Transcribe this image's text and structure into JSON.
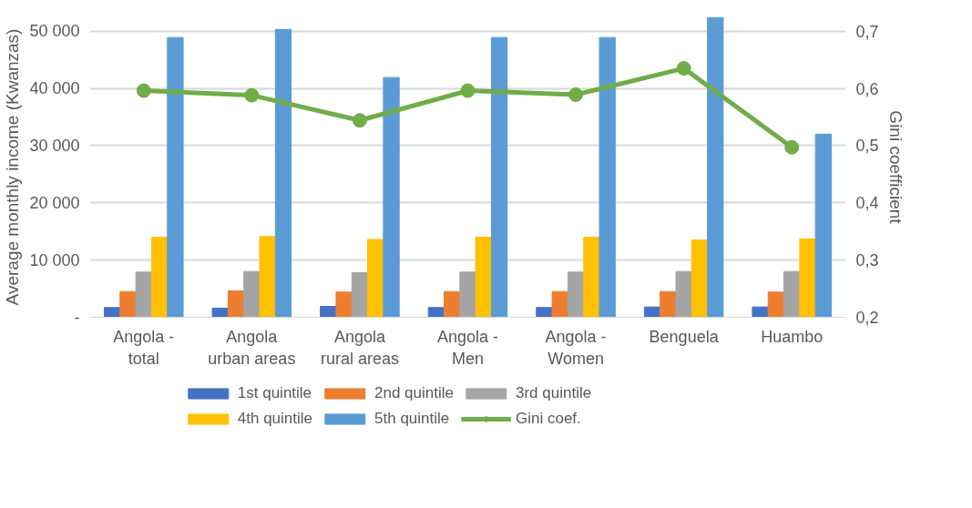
{
  "chart_data": {
    "type": "bar",
    "ylabel": "Average monthly income (Kwanzas)",
    "y2label": "Gini coefficient",
    "categories": [
      "Angola -\ntotal",
      "Angola\nurban areas",
      "Angola\nrural areas",
      "Angola -\nMen",
      "Angola -\nWomen",
      "Benguela",
      "Huambo"
    ],
    "series": [
      {
        "name": "1st quintile",
        "color": "#4472c4",
        "values": [
          1700,
          1600,
          1900,
          1700,
          1700,
          1800,
          1800
        ]
      },
      {
        "name": "2nd quintile",
        "color": "#ed7d31",
        "values": [
          4500,
          4600,
          4400,
          4500,
          4500,
          4500,
          4400
        ]
      },
      {
        "name": "3rd quintile",
        "color": "#a5a5a5",
        "values": [
          7900,
          8000,
          7800,
          7900,
          7900,
          8000,
          8000
        ]
      },
      {
        "name": "4th quintile",
        "color": "#ffc000",
        "values": [
          14000,
          14100,
          13600,
          14000,
          14000,
          13500,
          13700
        ]
      },
      {
        "name": "5th quintile",
        "color": "#5b9bd5",
        "values": [
          48900,
          50300,
          41900,
          48900,
          48900,
          52400,
          32000
        ]
      },
      {
        "name": "Gini coef.",
        "color": "#70ad47",
        "type": "line",
        "axis": "y2",
        "marker": "circle",
        "values": [
          0.596,
          0.588,
          0.544,
          0.596,
          0.589,
          0.635,
          0.497
        ]
      }
    ],
    "ylim": [
      0,
      52500
    ],
    "yticks": [
      {
        "value": 0,
        "label": "-"
      },
      {
        "value": 10000,
        "label": "10 000"
      },
      {
        "value": 20000,
        "label": "20 000"
      },
      {
        "value": 30000,
        "label": "30 000"
      },
      {
        "value": 40000,
        "label": "40 000"
      },
      {
        "value": 50000,
        "label": "50 000"
      }
    ],
    "y2lim": [
      0.2,
      0.725
    ],
    "y2ticks": [
      {
        "value": 0.2,
        "label": "0,2"
      },
      {
        "value": 0.3,
        "label": "0,3"
      },
      {
        "value": 0.4,
        "label": "0,4"
      },
      {
        "value": 0.5,
        "label": "0,5"
      },
      {
        "value": 0.6,
        "label": "0,6"
      },
      {
        "value": 0.7,
        "label": "0,7"
      }
    ],
    "grid": "y",
    "legend": "bottom"
  }
}
